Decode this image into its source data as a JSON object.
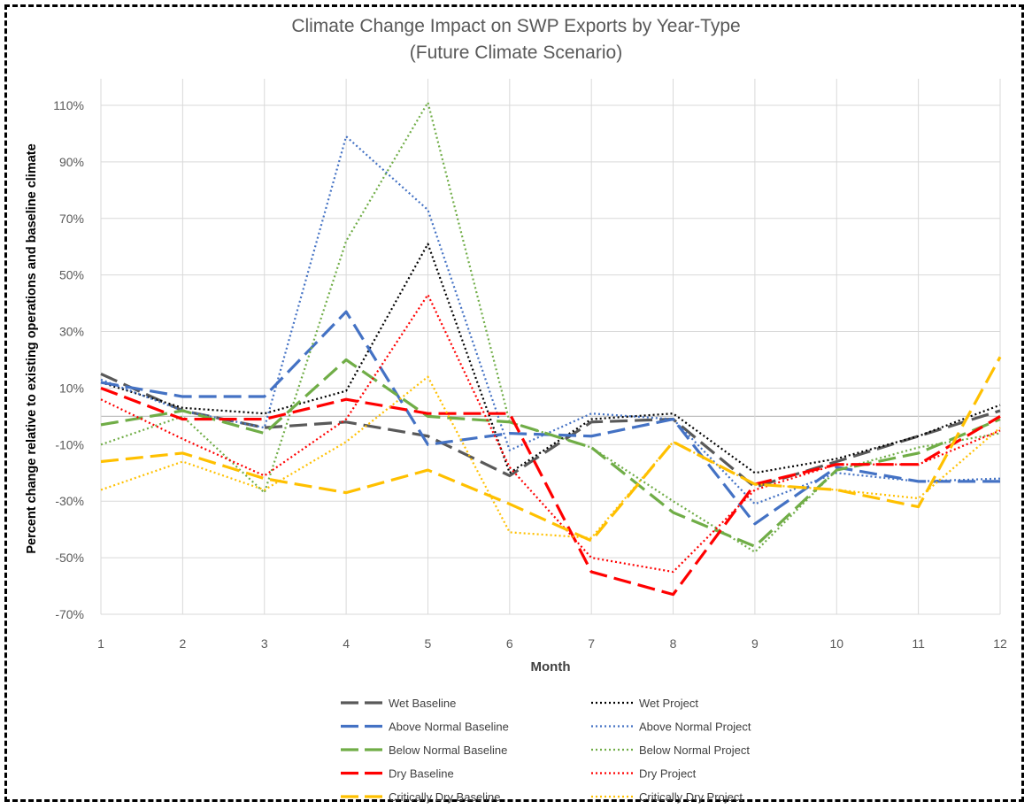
{
  "chart_data": {
    "type": "line",
    "title": "Climate Change Impact on SWP Exports by Year-Type",
    "subtitle": "(Future Climate Scenario)",
    "xlabel": "Month",
    "ylabel": "Percent change relative to existing operations and baseline climate",
    "x": [
      1,
      2,
      3,
      4,
      5,
      6,
      7,
      8,
      9,
      10,
      11,
      12
    ],
    "xlim": [
      1,
      12
    ],
    "ylim": [
      -70,
      110
    ],
    "yticks": [
      -70,
      -50,
      -30,
      -10,
      10,
      30,
      50,
      70,
      90,
      110
    ],
    "ytick_labels": [
      "-70%",
      "-50%",
      "-30%",
      "-10%",
      "10%",
      "30%",
      "50%",
      "70%",
      "90%",
      "110%"
    ],
    "grid": true,
    "legend_position": "bottom",
    "series": [
      {
        "name": "Wet Baseline",
        "color": "#595959",
        "style": "dashed",
        "values": [
          15,
          2,
          -4,
          -2,
          -7,
          -21,
          -2,
          -1,
          -25,
          -16,
          -7,
          2
        ]
      },
      {
        "name": "Wet Project",
        "color": "#000000",
        "style": "dotted",
        "values": [
          12,
          3,
          1,
          9,
          61,
          -20,
          -1,
          1,
          -20,
          -15,
          -7,
          4
        ]
      },
      {
        "name": "Above Normal Baseline",
        "color": "#4472c4",
        "style": "dashed",
        "values": [
          12,
          7,
          7,
          37,
          -10,
          -6,
          -7,
          -1,
          -38,
          -18,
          -23,
          -23
        ]
      },
      {
        "name": "Above Normal Project",
        "color": "#4472c4",
        "style": "dotted",
        "values": [
          13,
          2,
          -4,
          99,
          73,
          -12,
          1,
          -1,
          -31,
          -20,
          -23,
          -22
        ]
      },
      {
        "name": "Below Normal Baseline",
        "color": "#70ad47",
        "style": "dashed",
        "values": [
          -3,
          2,
          -6,
          20,
          0,
          -2,
          -11,
          -34,
          -46,
          -19,
          -13,
          -1
        ]
      },
      {
        "name": "Below Normal Project",
        "color": "#70ad47",
        "style": "dotted",
        "values": [
          -10,
          0,
          -27,
          62,
          111,
          -2,
          -11,
          -30,
          -48,
          -19,
          -11,
          -6
        ]
      },
      {
        "name": "Dry Baseline",
        "color": "#ff0000",
        "style": "dashed",
        "values": [
          10,
          -1,
          -1,
          6,
          1,
          1,
          -55,
          -63,
          -24,
          -17,
          -17,
          0
        ]
      },
      {
        "name": "Dry Project",
        "color": "#ff0000",
        "style": "dotted",
        "values": [
          6,
          -8,
          -21,
          -1,
          43,
          -18,
          -50,
          -55,
          -26,
          -17,
          -17,
          -5
        ]
      },
      {
        "name": "Critically Dry Baseline",
        "color": "#ffc000",
        "style": "dashed",
        "values": [
          -16,
          -13,
          -22,
          -27,
          -19,
          -31,
          -44,
          -9,
          -24,
          -26,
          -32,
          21
        ]
      },
      {
        "name": "Critically Dry Project",
        "color": "#ffc000",
        "style": "dotted",
        "values": [
          -26,
          -16,
          -26,
          -9,
          14,
          -41,
          -43,
          -9,
          -24,
          -26,
          -29,
          -4
        ]
      }
    ]
  }
}
